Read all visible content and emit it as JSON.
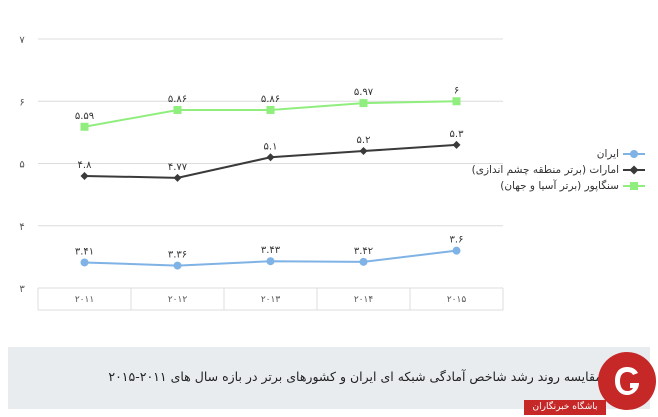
{
  "chart_data": {
    "type": "line",
    "title": "",
    "xlabel": "",
    "ylabel": "",
    "categories": [
      "۲۰۱۱",
      "۲۰۱۲",
      "۲۰۱۳",
      "۲۰۱۴",
      "۲۰۱۵"
    ],
    "ylim": [
      3,
      7
    ],
    "yticks": [
      3,
      4,
      5,
      6,
      7
    ],
    "ytick_labels": [
      "۳",
      "۴",
      "۵",
      "۶",
      "۷"
    ],
    "grid": "horizontal",
    "legend_position": "right",
    "series": [
      {
        "name": "ایران",
        "color": "#7fb2e5",
        "marker": "circle",
        "values": [
          3.41,
          3.36,
          3.43,
          3.42,
          3.6
        ],
        "labels": [
          "۳.۴۱",
          "۳.۳۶",
          "۳.۴۳",
          "۳.۴۲",
          "۳.۶"
        ]
      },
      {
        "name": "امارات (برتر منطقه چشم اندازی)",
        "color": "#3a3a3a",
        "marker": "diamond",
        "values": [
          4.8,
          4.77,
          5.1,
          5.2,
          5.3
        ],
        "labels": [
          "۴.۸",
          "۴.۷۷",
          "۵.۱",
          "۵.۲",
          "۵.۳"
        ]
      },
      {
        "name": "سنگاپور (برتر آسیا و جهان)",
        "color": "#90ee7e",
        "marker": "square",
        "values": [
          5.59,
          5.86,
          5.86,
          5.97,
          6.0
        ],
        "labels": [
          "۵.۵۹",
          "۵.۸۶",
          "۵.۸۶",
          "۵.۹۷",
          "۶"
        ]
      }
    ]
  },
  "caption": "مقایسه روند رشد شاخص آمادگی شبکه ای ایران و کشورهای برتر در بازه سال های ۲۰۱۱-۲۰۱۵",
  "brand": {
    "name": "باشگاه خبرنگاران",
    "logo_icon": "yjc-logo-icon",
    "color": "#c62828"
  }
}
